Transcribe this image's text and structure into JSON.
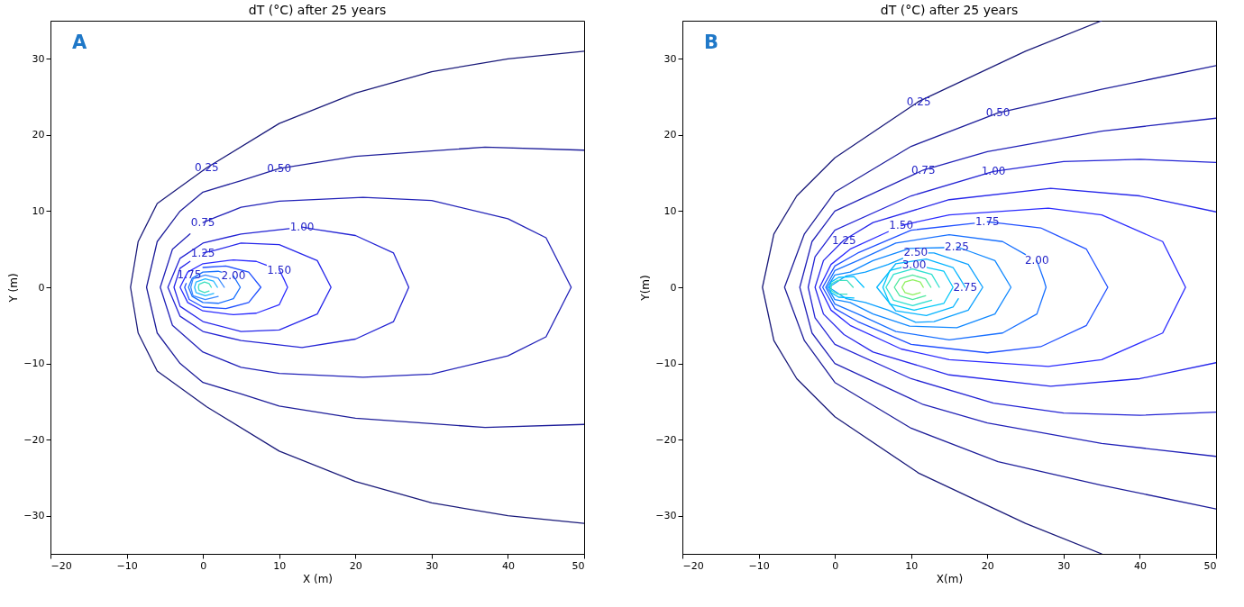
{
  "chart_data": [
    {
      "type": "line",
      "title": "dT (°C) after 25 years",
      "xlabel": "X (m)",
      "ylabel": "Y (m)",
      "xlim": [
        -20,
        50
      ],
      "ylim": [
        -35,
        35
      ],
      "xticks": [
        -20,
        -10,
        0,
        10,
        20,
        30,
        40,
        50
      ],
      "yticks": [
        -30,
        -20,
        -10,
        0,
        10,
        20,
        30
      ],
      "grid": false,
      "marker": "none",
      "annotations": [
        "A",
        {
          "text": "0.25",
          "x": 0.5,
          "y": 15.7
        },
        {
          "text": "0.50",
          "x": 10,
          "y": 15.6
        },
        {
          "text": "0.75",
          "x": 0,
          "y": 8.5
        },
        {
          "text": "1.00",
          "x": 13,
          "y": 7.9
        },
        {
          "text": "1.25",
          "x": 0,
          "y": 4.5
        },
        {
          "text": "1.50",
          "x": 10,
          "y": 2.3
        },
        {
          "text": "1.75",
          "x": -1.8,
          "y": 1.6
        },
        {
          "text": "2.00",
          "x": 4,
          "y": 1.5
        }
      ],
      "series": [
        {
          "color": "#1a1a7a",
          "x": [
            50,
            40,
            30,
            20,
            10,
            0.5,
            -6,
            -8.5,
            -9.5,
            -8.5,
            -6,
            0.5,
            10,
            20,
            30,
            40,
            50
          ],
          "values": [
            -31,
            -30,
            -28.3,
            -25.5,
            -21.5,
            -15.7,
            -11,
            -6,
            0,
            6,
            11,
            15.7,
            21.5,
            25.5,
            28.3,
            30,
            31
          ]
        },
        {
          "color": "#1e1e9a",
          "x": [
            50,
            37,
            20,
            10,
            5,
            0,
            -3,
            -6,
            -7.4,
            -6,
            -3,
            0,
            5,
            10,
            20,
            37,
            50
          ],
          "values": [
            -18,
            -18.4,
            -17.2,
            -15.6,
            -14,
            -12.5,
            -10,
            -6,
            0,
            6,
            10,
            12.5,
            14,
            15.6,
            17.2,
            18.4,
            18
          ]
        },
        {
          "color": "#2222b8",
          "x": [
            -1.7,
            -4,
            -5.6,
            -4,
            0,
            5,
            10,
            21,
            30,
            40,
            45,
            48.3,
            45,
            40,
            30,
            21,
            10,
            5,
            1.7,
            0
          ],
          "values": [
            7,
            5,
            0,
            -5,
            -8.5,
            -10.5,
            -11.3,
            -11.8,
            -11.4,
            -9,
            -6.5,
            0,
            6.5,
            9,
            11.4,
            11.8,
            11.3,
            10.5,
            9.2,
            8.5
          ]
        },
        {
          "color": "#2424d4",
          "x": [
            11.3,
            5,
            0,
            -3,
            -4.6,
            -3,
            0,
            5,
            13,
            20,
            25,
            27,
            25,
            20,
            14.7,
            13
          ],
          "values": [
            7.7,
            7,
            5.8,
            3.8,
            0,
            -3.8,
            -5.8,
            -7,
            -7.9,
            -6.8,
            -4.5,
            0,
            4.5,
            6.8,
            7.6,
            7.9
          ]
        },
        {
          "color": "#2626ea",
          "x": [
            -1.7,
            -3,
            -3.8,
            -3,
            0,
            5,
            10,
            15,
            16.8,
            15,
            10,
            5,
            1.7,
            0
          ],
          "values": [
            3.4,
            2.5,
            0,
            -2.5,
            -4.5,
            -5.8,
            -5.6,
            -3.5,
            0,
            3.5,
            5.6,
            5.8,
            4.9,
            4.5
          ]
        },
        {
          "color": "#2b2bff",
          "x": [
            8.3,
            7,
            4,
            0,
            -2,
            -3,
            -2,
            0,
            4,
            7,
            10,
            11.1,
            10.7,
            10
          ],
          "values": [
            2.9,
            3.4,
            3.6,
            3.1,
            2,
            0,
            -2,
            -3.1,
            -3.6,
            -3.4,
            -2.3,
            0,
            0.9,
            2.3
          ]
        },
        {
          "color": "#2050ff",
          "x": [
            -2.2,
            -2.4,
            -1.8,
            0,
            3,
            6,
            7.6,
            6,
            3,
            0
          ],
          "values": [
            0.5,
            0,
            -1.6,
            -2.6,
            -2.8,
            -2,
            0,
            2,
            2.8,
            2.6
          ]
        },
        {
          "color": "#1870ff",
          "x": [
            2.4,
            2,
            0,
            -1.4,
            -1.9,
            -1.4,
            0,
            2,
            4,
            4.9,
            4.6,
            4
          ],
          "values": [
            2,
            2.1,
            2,
            1.2,
            0,
            -1.2,
            -2,
            -2.1,
            -1.5,
            0,
            0.5,
            1.5
          ]
        },
        {
          "color": "#3a8bff",
          "x": [
            2.8,
            2,
            0.3,
            -1.3,
            -1.6,
            -1.3,
            0.3,
            2
          ],
          "values": [
            0,
            1.2,
            1.6,
            1.1,
            0,
            -1.1,
            -1.6,
            -1.2
          ]
        },
        {
          "color": "#22b8ff",
          "x": [
            1.9,
            1.4,
            0.3,
            -0.9,
            -1.1,
            -0.9,
            0.3,
            1.4
          ],
          "values": [
            0,
            0.8,
            1.1,
            0.7,
            0,
            -0.7,
            -1.1,
            -0.8
          ]
        },
        {
          "color": "#3ee0c0",
          "x": [
            1.1,
            0.8,
            0.2,
            -0.5,
            -0.6,
            -0.5,
            0.2,
            0.8
          ],
          "values": [
            0,
            0.5,
            0.7,
            0.4,
            0,
            -0.4,
            -0.7,
            -0.5
          ]
        }
      ]
    },
    {
      "type": "line",
      "title": "dT (°C) after 25 years",
      "xlabel": "X(m)",
      "ylabel": "Y(m)",
      "xlim": [
        -20,
        50
      ],
      "ylim": [
        -35,
        35
      ],
      "xticks": [
        -20,
        -10,
        0,
        10,
        20,
        30,
        40,
        50
      ],
      "yticks": [
        -30,
        -20,
        -10,
        0,
        10,
        20,
        30
      ],
      "grid": false,
      "marker": "none",
      "annotations": [
        "B",
        {
          "text": "0.25",
          "x": 11,
          "y": 24.4
        },
        {
          "text": "0.50",
          "x": 21.4,
          "y": 22.9
        },
        {
          "text": "0.75",
          "x": 11.6,
          "y": 15.4
        },
        {
          "text": "1.00",
          "x": 20.8,
          "y": 15.2
        },
        {
          "text": "1.25",
          "x": 1.2,
          "y": 6.2
        },
        {
          "text": "1.50",
          "x": 8.7,
          "y": 8.1
        },
        {
          "text": "1.75",
          "x": 20,
          "y": 8.6
        },
        {
          "text": "2.00",
          "x": 26.5,
          "y": 3.5
        },
        {
          "text": "2.25",
          "x": 16,
          "y": 5.3
        },
        {
          "text": "2.50",
          "x": 10.6,
          "y": 4.6
        },
        {
          "text": "3.00",
          "x": 10.4,
          "y": 3
        },
        {
          "text": "2.75",
          "x": 17.1,
          "y": 0
        }
      ],
      "series": [
        {
          "color": "#1a1a7a",
          "x": [
            35,
            25,
            11,
            0,
            -5,
            -8,
            -9.5,
            -8,
            -5,
            0,
            11,
            25,
            35
          ],
          "values": [
            -35,
            -31,
            -24.4,
            -17,
            -12,
            -7,
            0,
            7,
            12,
            17,
            24.4,
            31,
            35
          ]
        },
        {
          "color": "#1e1e9a",
          "x": [
            50,
            35,
            21.4,
            10,
            0,
            -4,
            -6.6,
            -4,
            0,
            10,
            21.4,
            35,
            50
          ],
          "values": [
            -29.1,
            -26,
            -22.9,
            -18.5,
            -12.5,
            -7,
            0,
            7,
            12.5,
            18.5,
            22.9,
            26,
            29.1
          ]
        },
        {
          "color": "#2222b8",
          "x": [
            50,
            35,
            20,
            11.6,
            0,
            -3,
            -4.6,
            -3,
            0,
            11.6,
            20,
            35,
            50
          ],
          "values": [
            -22.2,
            -20.5,
            -17.8,
            -15.4,
            -10,
            -6,
            0,
            6,
            10,
            15.4,
            17.8,
            20.5,
            22.2
          ]
        },
        {
          "color": "#2424d4",
          "x": [
            50,
            40,
            30,
            20.8,
            10,
            0,
            -2.6,
            -3.5,
            -2.6,
            0,
            10,
            20.8,
            30,
            40,
            50
          ],
          "values": [
            -16.4,
            -16.8,
            -16.5,
            -15.2,
            -12,
            -7.5,
            -4,
            0,
            4,
            7.5,
            12,
            15.2,
            16.5,
            16.8,
            16.4
          ]
        },
        {
          "color": "#2626ea",
          "x": [
            50,
            40,
            28.3,
            15,
            5,
            1.2,
            -1.5,
            -2.6,
            -1.5,
            1.2,
            5,
            15,
            28.3,
            40,
            50
          ],
          "values": [
            -9.9,
            -12,
            -13,
            -11.5,
            -8.5,
            -6.2,
            -3.5,
            0,
            3.5,
            6.2,
            8.5,
            11.5,
            13,
            12,
            9.9
          ]
        },
        {
          "color": "#2b2bff",
          "x": [
            7,
            2,
            -0.5,
            -2,
            -0.5,
            2,
            8.7,
            15,
            28,
            35,
            43,
            46,
            43,
            35,
            28,
            15,
            10.4,
            8.7
          ],
          "values": [
            7.3,
            5,
            3,
            0,
            -3,
            -5,
            -8.1,
            -9.5,
            -10.4,
            -9.5,
            -6,
            0,
            6,
            9.5,
            10.4,
            9.5,
            8.5,
            8.1
          ]
        },
        {
          "color": "#2050ff",
          "x": [
            18.3,
            10,
            3,
            0,
            -1.6,
            0,
            3,
            10,
            20,
            27,
            33,
            35.8,
            33,
            27,
            21.7,
            20
          ],
          "values": [
            8.4,
            7.5,
            4.5,
            2.8,
            0,
            -2.8,
            -4.5,
            -7.5,
            -8.6,
            -7.8,
            -5,
            0,
            5,
            7.8,
            8.4,
            8.6
          ]
        },
        {
          "color": "#1870ff",
          "x": [
            25,
            22,
            15,
            8,
            3,
            0,
            -1.2,
            0,
            3,
            8,
            15,
            22,
            26.5,
            27.7,
            27.4,
            26.5
          ],
          "values": [
            4.3,
            6,
            6.9,
            5.8,
            3.5,
            2.2,
            0,
            -2.2,
            -3.5,
            -5.8,
            -6.9,
            -6,
            -3.5,
            0,
            1,
            3.5
          ]
        },
        {
          "color": "#1088ff",
          "x": [
            14.3,
            9.8,
            5,
            2,
            0,
            -1,
            0,
            2,
            5,
            9.8,
            16,
            21,
            23.1,
            21,
            17.7,
            16
          ],
          "values": [
            5.2,
            5.1,
            3.5,
            2,
            1.6,
            0,
            -1.6,
            -2,
            -3.5,
            -5.1,
            -5.3,
            -3.5,
            0,
            3.5,
            4.7,
            5.3
          ]
        },
        {
          "color": "#0aa0ff",
          "x": [
            8.9,
            7,
            4,
            1.5,
            -0.8,
            1.5,
            4,
            7,
            10.6,
            13,
            17.5,
            19.4,
            17.5,
            13,
            12.3
          ],
          "values": [
            3.8,
            3,
            2,
            1.5,
            0,
            -1.5,
            -2,
            -3,
            -4.6,
            -4.5,
            -3,
            0,
            3,
            4.5,
            4.5
          ]
        },
        {
          "color": "#05b5ff",
          "x": [
            16.2,
            15.5,
            12,
            8,
            5.5,
            8,
            12,
            15.5,
            16.2,
            17.1
          ],
          "values": [
            -1.5,
            -2.6,
            -3.7,
            -3.1,
            0,
            3.1,
            3.7,
            2.6,
            1.5,
            0
          ]
        },
        {
          "color": "#00c8f8",
          "x": [
            8.7,
            7.2,
            6.3,
            7.2,
            10.4,
            14.3,
            15.5,
            14.3,
            12.1
          ],
          "values": [
            2.6,
            2.2,
            0,
            -2.2,
            -3,
            -2.1,
            0,
            2.1,
            2.6
          ]
        },
        {
          "color": "#30e0d0",
          "x": [
            13.7,
            12.7,
            10.2,
            7.7,
            6.7,
            7.7,
            10.2,
            12.7
          ],
          "values": [
            0,
            1.7,
            2.4,
            1.7,
            0,
            -1.7,
            -2.4,
            -1.7
          ]
        },
        {
          "color": "#50e8a0",
          "x": [
            12.6,
            11.9,
            10.2,
            8.5,
            7.8,
            8.5,
            10.2,
            11.9
          ],
          "values": [
            0,
            1.1,
            1.6,
            1.1,
            0,
            -1.1,
            -1.6,
            -1.1
          ]
        },
        {
          "color": "#90f060",
          "x": [
            11.6,
            11.2,
            10.2,
            9.2,
            8.8,
            9.2,
            10.2,
            11.2
          ],
          "values": [
            0,
            0.7,
            1,
            0.7,
            0,
            -0.7,
            -1,
            -0.7
          ]
        },
        {
          "color": "#00c0ff",
          "x": [
            3.8,
            2.5,
            0.5,
            -0.5,
            -0.7,
            -0.5,
            0.5,
            2.5
          ],
          "values": [
            0,
            1.4,
            1.3,
            0.7,
            0,
            -0.7,
            -1.3,
            -1.4
          ]
        },
        {
          "color": "#40e0c0",
          "x": [
            2.4,
            1.6,
            0.4,
            -0.4,
            -0.5,
            -0.4,
            0.4,
            1.6
          ],
          "values": [
            0,
            0.9,
            0.9,
            0.5,
            0,
            -0.5,
            -0.9,
            -0.9
          ]
        }
      ]
    }
  ]
}
